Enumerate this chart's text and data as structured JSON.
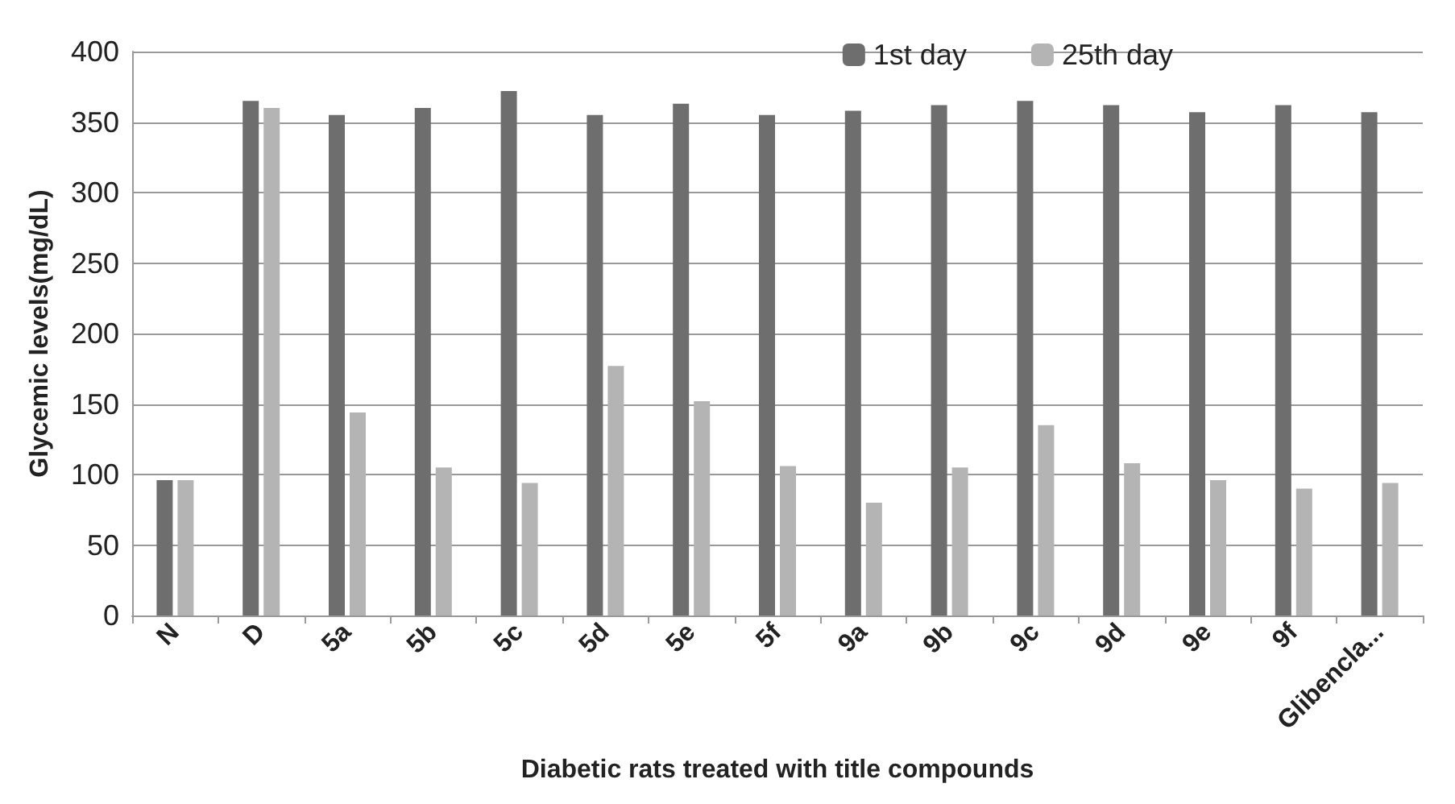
{
  "chart_data": {
    "type": "bar",
    "xlabel": "Diabetic rats treated with title compounds",
    "ylabel": "Glycemic levels(mg/dL)",
    "categories": [
      "N",
      "D",
      "5a",
      "5b",
      "5c",
      "5d",
      "5e",
      "5f",
      "9a",
      "9b",
      "9c",
      "9d",
      "9e",
      "9f",
      "Glibencla..."
    ],
    "series": [
      {
        "name": "1st day",
        "color": "#6e6e6e",
        "values": [
          96,
          365,
          355,
          360,
          372,
          355,
          363,
          355,
          358,
          362,
          365,
          362,
          357,
          362,
          357
        ]
      },
      {
        "name": "25th day",
        "color": "#b4b4b4",
        "values": [
          96,
          360,
          144,
          105,
          94,
          177,
          152,
          106,
          80,
          105,
          135,
          108,
          96,
          90,
          94
        ]
      }
    ],
    "ylim": [
      0,
      400
    ],
    "yticks": [
      0,
      50,
      100,
      150,
      200,
      250,
      300,
      350,
      400
    ],
    "grid": "y",
    "legend": "top right"
  }
}
